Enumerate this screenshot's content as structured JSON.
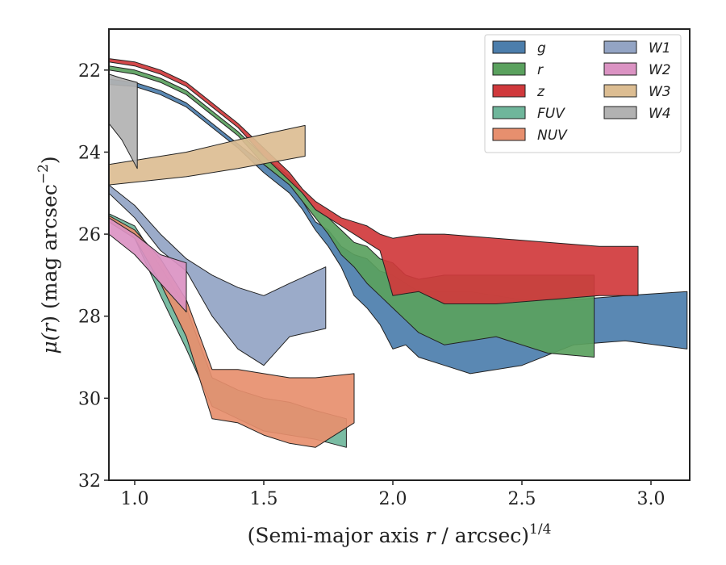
{
  "chart_data": {
    "type": "area",
    "title": "",
    "xlabel": "(Semi-major axis r / arcsec)",
    "xlabel_parts": {
      "prefix": "(Semi-major axis ",
      "var": "r",
      "suffix": " / arcsec)",
      "exponent": "1/4"
    },
    "ylabel": "μ(r) (mag arcsec−2)",
    "ylabel_parts": {
      "mu": "μ(",
      "var": "r",
      "close": ")",
      "units": " (mag arcsec",
      "exp": "−2",
      "end": ")"
    },
    "xlim": [
      0.9,
      3.15
    ],
    "ylim": [
      32,
      21
    ],
    "y_inverted": true,
    "x_ticks": [
      1.0,
      1.5,
      2.0,
      2.5,
      3.0
    ],
    "x_tick_labels": [
      "1.0",
      "1.5",
      "2.0",
      "2.5",
      "3.0"
    ],
    "y_ticks": [
      22,
      24,
      26,
      28,
      30,
      32
    ],
    "y_tick_labels": [
      "22",
      "24",
      "26",
      "28",
      "30",
      "32"
    ],
    "grid": false,
    "legend_placement": "top-right",
    "legend_columns": 2,
    "series": [
      {
        "name": "g",
        "color": "#4c7eac",
        "upper": [
          [
            0.9,
            22.22
          ],
          [
            1.0,
            22.3
          ],
          [
            1.1,
            22.5
          ],
          [
            1.2,
            22.8
          ],
          [
            1.3,
            23.3
          ],
          [
            1.4,
            23.8
          ],
          [
            1.5,
            24.3
          ],
          [
            1.6,
            24.8
          ],
          [
            1.65,
            25.2
          ],
          [
            1.7,
            25.7
          ],
          [
            1.75,
            25.9
          ],
          [
            1.8,
            26.3
          ],
          [
            1.85,
            26.5
          ],
          [
            1.9,
            26.6
          ],
          [
            1.95,
            26.9
          ],
          [
            2.0,
            27.0
          ],
          [
            2.05,
            27.2
          ],
          [
            2.1,
            27.4
          ],
          [
            2.2,
            27.4
          ],
          [
            2.3,
            27.4
          ],
          [
            2.5,
            27.6
          ],
          [
            2.7,
            27.6
          ],
          [
            2.9,
            27.5
          ],
          [
            3.14,
            27.4
          ]
        ],
        "lower": [
          [
            0.9,
            22.35
          ],
          [
            1.0,
            22.4
          ],
          [
            1.1,
            22.6
          ],
          [
            1.2,
            22.9
          ],
          [
            1.3,
            23.4
          ],
          [
            1.4,
            23.9
          ],
          [
            1.5,
            24.5
          ],
          [
            1.6,
            25.0
          ],
          [
            1.65,
            25.4
          ],
          [
            1.7,
            25.9
          ],
          [
            1.75,
            26.3
          ],
          [
            1.8,
            26.8
          ],
          [
            1.85,
            27.5
          ],
          [
            1.9,
            27.8
          ],
          [
            1.95,
            28.2
          ],
          [
            2.0,
            28.8
          ],
          [
            2.05,
            28.7
          ],
          [
            2.1,
            29.0
          ],
          [
            2.2,
            29.2
          ],
          [
            2.3,
            29.4
          ],
          [
            2.5,
            29.2
          ],
          [
            2.7,
            28.7
          ],
          [
            2.9,
            28.6
          ],
          [
            3.14,
            28.8
          ]
        ]
      },
      {
        "name": "r",
        "color": "#5aa15e",
        "upper": [
          [
            0.9,
            21.9
          ],
          [
            1.0,
            22.0
          ],
          [
            1.1,
            22.2
          ],
          [
            1.2,
            22.5
          ],
          [
            1.3,
            23.0
          ],
          [
            1.4,
            23.5
          ],
          [
            1.5,
            24.1
          ],
          [
            1.6,
            24.6
          ],
          [
            1.65,
            25.0
          ],
          [
            1.7,
            25.4
          ],
          [
            1.75,
            25.6
          ],
          [
            1.8,
            25.9
          ],
          [
            1.85,
            26.2
          ],
          [
            1.9,
            26.3
          ],
          [
            1.95,
            26.6
          ],
          [
            2.0,
            26.7
          ],
          [
            2.05,
            27.0
          ],
          [
            2.1,
            27.1
          ],
          [
            2.2,
            27.0
          ],
          [
            2.4,
            27.0
          ],
          [
            2.6,
            27.0
          ],
          [
            2.78,
            27.0
          ]
        ],
        "lower": [
          [
            0.9,
            22.0
          ],
          [
            1.0,
            22.1
          ],
          [
            1.1,
            22.3
          ],
          [
            1.2,
            22.6
          ],
          [
            1.3,
            23.1
          ],
          [
            1.4,
            23.6
          ],
          [
            1.5,
            24.3
          ],
          [
            1.6,
            24.8
          ],
          [
            1.65,
            25.2
          ],
          [
            1.7,
            25.6
          ],
          [
            1.75,
            26.0
          ],
          [
            1.8,
            26.5
          ],
          [
            1.85,
            26.8
          ],
          [
            1.9,
            27.2
          ],
          [
            1.95,
            27.5
          ],
          [
            2.0,
            27.8
          ],
          [
            2.05,
            28.1
          ],
          [
            2.1,
            28.4
          ],
          [
            2.2,
            28.7
          ],
          [
            2.4,
            28.5
          ],
          [
            2.6,
            28.9
          ],
          [
            2.78,
            29.0
          ]
        ]
      },
      {
        "name": "z",
        "color": "#d0393c",
        "upper": [
          [
            0.9,
            21.72
          ],
          [
            1.0,
            21.8
          ],
          [
            1.1,
            22.0
          ],
          [
            1.2,
            22.3
          ],
          [
            1.3,
            22.8
          ],
          [
            1.4,
            23.3
          ],
          [
            1.5,
            23.9
          ],
          [
            1.6,
            24.5
          ],
          [
            1.65,
            24.9
          ],
          [
            1.7,
            25.2
          ],
          [
            1.75,
            25.4
          ],
          [
            1.8,
            25.6
          ],
          [
            1.85,
            25.7
          ],
          [
            1.9,
            25.8
          ],
          [
            1.95,
            26.0
          ],
          [
            2.0,
            26.1
          ],
          [
            2.1,
            26.0
          ],
          [
            2.2,
            26.0
          ],
          [
            2.4,
            26.1
          ],
          [
            2.6,
            26.2
          ],
          [
            2.8,
            26.3
          ],
          [
            2.95,
            26.3
          ]
        ],
        "lower": [
          [
            0.9,
            21.8
          ],
          [
            1.0,
            21.9
          ],
          [
            1.1,
            22.1
          ],
          [
            1.2,
            22.4
          ],
          [
            1.3,
            22.9
          ],
          [
            1.4,
            23.4
          ],
          [
            1.5,
            24.1
          ],
          [
            1.6,
            24.7
          ],
          [
            1.65,
            25.0
          ],
          [
            1.7,
            25.4
          ],
          [
            1.75,
            25.6
          ],
          [
            1.8,
            25.8
          ],
          [
            1.85,
            26.0
          ],
          [
            1.9,
            26.2
          ],
          [
            1.95,
            26.4
          ],
          [
            2.0,
            27.5
          ],
          [
            2.1,
            27.4
          ],
          [
            2.2,
            27.7
          ],
          [
            2.4,
            27.7
          ],
          [
            2.6,
            27.6
          ],
          [
            2.8,
            27.5
          ],
          [
            2.95,
            27.5
          ]
        ]
      },
      {
        "name": "FUV",
        "color": "#6fb69b",
        "upper": [
          [
            0.9,
            25.5
          ],
          [
            1.0,
            25.8
          ],
          [
            1.1,
            26.8
          ],
          [
            1.2,
            27.8
          ],
          [
            1.3,
            29.5
          ],
          [
            1.4,
            29.8
          ],
          [
            1.5,
            30.0
          ],
          [
            1.6,
            30.1
          ],
          [
            1.7,
            30.3
          ],
          [
            1.82,
            30.5
          ]
        ],
        "lower": [
          [
            0.9,
            25.7
          ],
          [
            1.0,
            26.1
          ],
          [
            1.1,
            27.5
          ],
          [
            1.2,
            28.8
          ],
          [
            1.3,
            30.2
          ],
          [
            1.4,
            30.5
          ],
          [
            1.5,
            30.8
          ],
          [
            1.6,
            30.9
          ],
          [
            1.7,
            31.0
          ],
          [
            1.82,
            31.2
          ]
        ]
      },
      {
        "name": "NUV",
        "color": "#e78f6e",
        "upper": [
          [
            0.9,
            25.55
          ],
          [
            1.0,
            25.9
          ],
          [
            1.1,
            26.6
          ],
          [
            1.2,
            27.6
          ],
          [
            1.3,
            29.3
          ],
          [
            1.4,
            29.3
          ],
          [
            1.5,
            29.4
          ],
          [
            1.6,
            29.5
          ],
          [
            1.7,
            29.5
          ],
          [
            1.85,
            29.4
          ]
        ],
        "lower": [
          [
            0.9,
            25.7
          ],
          [
            1.0,
            26.1
          ],
          [
            1.1,
            27.2
          ],
          [
            1.2,
            28.5
          ],
          [
            1.3,
            30.5
          ],
          [
            1.4,
            30.6
          ],
          [
            1.5,
            30.9
          ],
          [
            1.6,
            31.1
          ],
          [
            1.7,
            31.2
          ],
          [
            1.85,
            30.6
          ]
        ]
      },
      {
        "name": "W1",
        "color": "#93a4c4",
        "upper": [
          [
            0.9,
            24.8
          ],
          [
            1.0,
            25.3
          ],
          [
            1.1,
            26.0
          ],
          [
            1.2,
            26.6
          ],
          [
            1.3,
            27.0
          ],
          [
            1.4,
            27.3
          ],
          [
            1.5,
            27.5
          ],
          [
            1.6,
            27.2
          ],
          [
            1.74,
            26.8
          ]
        ],
        "lower": [
          [
            0.9,
            25.0
          ],
          [
            1.0,
            25.6
          ],
          [
            1.1,
            26.4
          ],
          [
            1.2,
            26.9
          ],
          [
            1.3,
            28.0
          ],
          [
            1.4,
            28.8
          ],
          [
            1.5,
            29.2
          ],
          [
            1.6,
            28.5
          ],
          [
            1.74,
            28.3
          ]
        ]
      },
      {
        "name": "W2",
        "color": "#db93c3",
        "upper": [
          [
            0.9,
            25.6
          ],
          [
            1.0,
            26.0
          ],
          [
            1.1,
            26.5
          ],
          [
            1.2,
            26.7
          ]
        ],
        "lower": [
          [
            0.9,
            26.0
          ],
          [
            1.0,
            26.5
          ],
          [
            1.1,
            27.2
          ],
          [
            1.2,
            27.9
          ]
        ]
      },
      {
        "name": "W3",
        "color": "#dcbd92",
        "upper": [
          [
            0.9,
            24.3
          ],
          [
            1.2,
            24.0
          ],
          [
            1.4,
            23.7
          ],
          [
            1.66,
            23.35
          ]
        ],
        "lower": [
          [
            0.9,
            24.8
          ],
          [
            1.2,
            24.6
          ],
          [
            1.4,
            24.4
          ],
          [
            1.66,
            24.1
          ]
        ]
      },
      {
        "name": "W4",
        "color": "#b2b2b2",
        "upper": [
          [
            0.9,
            22.1
          ],
          [
            0.95,
            22.2
          ],
          [
            1.01,
            22.3
          ]
        ],
        "lower": [
          [
            0.9,
            23.3
          ],
          [
            0.95,
            23.7
          ],
          [
            1.01,
            24.4
          ]
        ]
      }
    ]
  }
}
